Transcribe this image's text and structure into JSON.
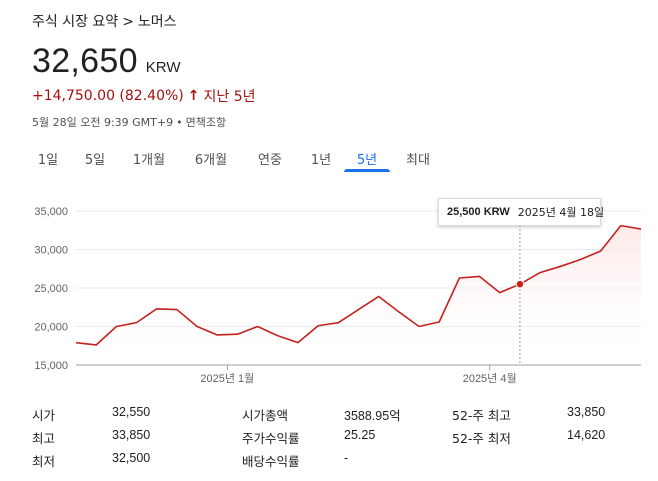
{
  "breadcrumb": {
    "parent": "주식 시장 요약",
    "separator": ">",
    "current": "노머스"
  },
  "quote": {
    "price": "32,650",
    "currency": "KRW",
    "change": "+14,750.00 (82.40%)",
    "arrow": "↑",
    "period": "지난 5년",
    "timestamp": "5월 28일 오전 9:39 GMT+9",
    "dot": "•",
    "disclaimer": "면책조항"
  },
  "tabs": [
    {
      "label": "1일",
      "active": false
    },
    {
      "label": "5일",
      "active": false
    },
    {
      "label": "1개월",
      "active": false
    },
    {
      "label": "6개월",
      "active": false
    },
    {
      "label": "연중",
      "active": false
    },
    {
      "label": "1년",
      "active": false
    },
    {
      "label": "5년",
      "active": true
    },
    {
      "label": "최대",
      "active": false
    }
  ],
  "tooltip": {
    "price": "25,500 KRW",
    "date": "2025년 4월 18일"
  },
  "chart_data": {
    "type": "area",
    "ylim": [
      15000,
      35000
    ],
    "yticks": [
      {
        "value": 35000,
        "label": "35,000"
      },
      {
        "value": 30000,
        "label": "30,000"
      },
      {
        "value": 25000,
        "label": "25,000"
      },
      {
        "value": 20000,
        "label": "20,000"
      },
      {
        "value": 15000,
        "label": "15,000"
      }
    ],
    "xticks": [
      {
        "index": 7.5,
        "label": "2025년 1월"
      },
      {
        "index": 20.5,
        "label": "2025년 4월"
      }
    ],
    "values": [
      17900,
      17600,
      20000,
      20500,
      22300,
      22200,
      20000,
      18900,
      19000,
      20000,
      18800,
      17900,
      20100,
      20500,
      22200,
      23900,
      21900,
      20000,
      20600,
      26300,
      26500,
      24400,
      25500,
      27000,
      27800,
      28700,
      29800,
      33100,
      32650
    ],
    "highlight_index": 22,
    "line_color": "#c5221f",
    "fill_color": "#fce8e6",
    "grid": true
  },
  "stats": [
    [
      {
        "label": "시가",
        "value": "32,550"
      },
      {
        "label": "시가총액",
        "value": "3588.95억"
      },
      {
        "label": "52-주 최고",
        "value": "33,850"
      }
    ],
    [
      {
        "label": "최고",
        "value": "33,850"
      },
      {
        "label": "주가수익률",
        "value": "25.25"
      },
      {
        "label": "52-주 최저",
        "value": "14,620"
      }
    ],
    [
      {
        "label": "최저",
        "value": "32,500"
      },
      {
        "label": "배당수익률",
        "value": "-"
      }
    ]
  ]
}
